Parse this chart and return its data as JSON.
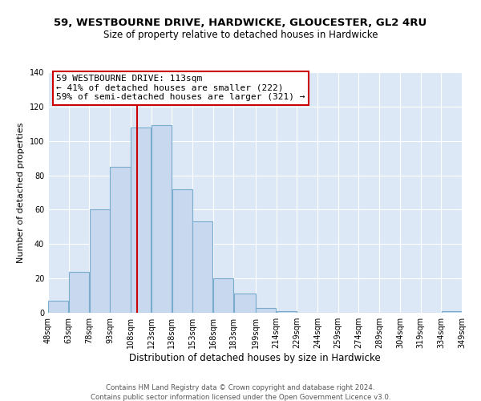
{
  "title": "59, WESTBOURNE DRIVE, HARDWICKE, GLOUCESTER, GL2 4RU",
  "subtitle": "Size of property relative to detached houses in Hardwicke",
  "xlabel": "Distribution of detached houses by size in Hardwicke",
  "ylabel": "Number of detached properties",
  "bar_edges": [
    48,
    63,
    78,
    93,
    108,
    123,
    138,
    153,
    168,
    183,
    199,
    214,
    229,
    244,
    259,
    274,
    289,
    304,
    319,
    334,
    349
  ],
  "bar_heights": [
    7,
    24,
    60,
    85,
    108,
    109,
    72,
    53,
    20,
    11,
    3,
    1,
    0,
    0,
    0,
    0,
    0,
    0,
    0,
    1
  ],
  "bar_color": "#c8d8ee",
  "bar_edge_color": "#7aacce",
  "bar_linewidth": 0.8,
  "vline_x": 113,
  "vline_color": "#cc0000",
  "vline_linewidth": 1.5,
  "annotation_line1": "59 WESTBOURNE DRIVE: 113sqm",
  "annotation_line2": "← 41% of detached houses are smaller (222)",
  "annotation_line3": "59% of semi-detached houses are larger (321) →",
  "annotation_box_facecolor": "#ffffff",
  "annotation_border_color": "#cc0000",
  "annotation_border_linewidth": 1.5,
  "ylim": [
    0,
    140
  ],
  "yticks": [
    0,
    20,
    40,
    60,
    80,
    100,
    120,
    140
  ],
  "tick_labels": [
    "48sqm",
    "63sqm",
    "78sqm",
    "93sqm",
    "108sqm",
    "123sqm",
    "138sqm",
    "153sqm",
    "168sqm",
    "183sqm",
    "199sqm",
    "214sqm",
    "229sqm",
    "244sqm",
    "259sqm",
    "274sqm",
    "289sqm",
    "304sqm",
    "319sqm",
    "334sqm",
    "349sqm"
  ],
  "footer_line1": "Contains HM Land Registry data © Crown copyright and database right 2024.",
  "footer_line2": "Contains public sector information licensed under the Open Government Licence v3.0.",
  "title_fontsize": 9.5,
  "subtitle_fontsize": 8.5,
  "xlabel_fontsize": 8.5,
  "ylabel_fontsize": 8,
  "tick_fontsize": 7,
  "footer_fontsize": 6.2,
  "annotation_fontsize": 8,
  "bg_color": "#ffffff",
  "plot_bg_color": "#dce8f5",
  "grid_color": "#ffffff"
}
